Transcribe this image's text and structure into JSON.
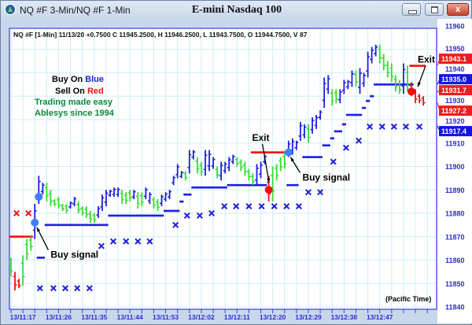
{
  "window": {
    "title": "NQ #F 3-Min/NQ #F 1-Min",
    "chart_title": "E-mini Nasdaq 100",
    "close_label": "x"
  },
  "info_line": "NQ #F [1-Min] 11/13/20  +0.7500 C 11945.2500, H 11946.2500, L 11943.7500, O 11944.7500, V 87",
  "legend": {
    "buy_prefix": "Buy On ",
    "buy_word": "Blue",
    "sell_prefix": "Sell On ",
    "sell_word": "Red",
    "line3": "Trading made easy",
    "line4": "Ablesys since 1994"
  },
  "timezone_label": "(Pacific Time)",
  "colors": {
    "blue": "#1e1ee0",
    "green": "#33dd33",
    "red": "#ee1111",
    "signal_blue": "#3f7fff",
    "tag_blue": "#1515e0",
    "tag_red": "#ee1c1c",
    "grid": "#cdeff5",
    "frame": "#3c3cf0",
    "legend_green": "#0a8a3a"
  },
  "chart_data": {
    "type": "ohlc-bar",
    "y_axis": {
      "min": 11840,
      "max": 11960,
      "ticks": [
        11960,
        11950,
        11940,
        11930,
        11920,
        11910,
        11900,
        11890,
        11880,
        11870,
        11860,
        11850,
        11840
      ]
    },
    "x_axis": {
      "tick_every_bars": 3,
      "labels": [
        {
          "bar": 3,
          "text": "13/11:17"
        },
        {
          "bar": 12,
          "text": "13/11:26"
        },
        {
          "bar": 21,
          "text": "13/11:35"
        },
        {
          "bar": 30,
          "text": "13/11:44"
        },
        {
          "bar": 39,
          "text": "13/11:53"
        },
        {
          "bar": 48,
          "text": "13/12:02"
        },
        {
          "bar": 57,
          "text": "13/12:11"
        },
        {
          "bar": 66,
          "text": "13/12:20"
        },
        {
          "bar": 75,
          "text": "13/12:29"
        },
        {
          "bar": 84,
          "text": "13/12:38"
        },
        {
          "bar": 93,
          "text": "13/12:47"
        }
      ]
    },
    "bars_hi_lo_color": [
      [
        11861,
        11853,
        "g"
      ],
      [
        11855,
        11847,
        "r"
      ],
      [
        11852,
        11848,
        "r"
      ],
      [
        11862,
        11849,
        "g"
      ],
      [
        11869,
        11860,
        "g"
      ],
      [
        11870,
        11864,
        "g"
      ],
      [
        11884,
        11869,
        "b"
      ],
      [
        11896,
        11884,
        "b"
      ],
      [
        11893,
        11888,
        "b"
      ],
      [
        11893,
        11885,
        "g"
      ],
      [
        11890,
        11883,
        "g"
      ],
      [
        11886,
        11883,
        "g"
      ],
      [
        11887,
        11882,
        "g"
      ],
      [
        11884,
        11881,
        "g"
      ],
      [
        11884,
        11880,
        "g"
      ],
      [
        11885,
        11882,
        "b"
      ],
      [
        11887,
        11883,
        "b"
      ],
      [
        11885,
        11880,
        "g"
      ],
      [
        11883,
        11879,
        "g"
      ],
      [
        11883,
        11878,
        "g"
      ],
      [
        11881,
        11876,
        "g"
      ],
      [
        11880,
        11876,
        "g"
      ],
      [
        11883,
        11878,
        "b"
      ],
      [
        11888,
        11881,
        "b"
      ],
      [
        11890,
        11883,
        "b"
      ],
      [
        11890,
        11887,
        "b"
      ],
      [
        11891,
        11887,
        "b"
      ],
      [
        11891,
        11887,
        "b"
      ],
      [
        11890,
        11884,
        "g"
      ],
      [
        11889,
        11884,
        "g"
      ],
      [
        11890,
        11885,
        "g"
      ],
      [
        11890,
        11886,
        "b"
      ],
      [
        11889,
        11882,
        "g"
      ],
      [
        11889,
        11883,
        "g"
      ],
      [
        11891,
        11886,
        "b"
      ],
      [
        11889,
        11884,
        "b"
      ],
      [
        11887,
        11882,
        "g"
      ],
      [
        11886,
        11881,
        "g"
      ],
      [
        11888,
        11883,
        "b"
      ],
      [
        11889,
        11885,
        "b"
      ],
      [
        11890,
        11886,
        "b"
      ],
      [
        11896,
        11892,
        "b"
      ],
      [
        11901,
        11895,
        "b"
      ],
      [
        11898,
        11895,
        "b"
      ],
      [
        11898,
        11894,
        "g"
      ],
      [
        11907,
        11897,
        "b"
      ],
      [
        11907,
        11903,
        "b"
      ],
      [
        11904,
        11897,
        "g"
      ],
      [
        11902,
        11896,
        "g"
      ],
      [
        11907,
        11896,
        "b"
      ],
      [
        11907,
        11898,
        "b"
      ],
      [
        11904,
        11899,
        "b"
      ],
      [
        11900,
        11895,
        "g"
      ],
      [
        11902,
        11894,
        "b"
      ],
      [
        11902,
        11897,
        "b"
      ],
      [
        11904,
        11898,
        "b"
      ],
      [
        11905,
        11901,
        "b"
      ],
      [
        11904,
        11900,
        "g"
      ],
      [
        11903,
        11898,
        "g"
      ],
      [
        11902,
        11896,
        "g"
      ],
      [
        11899,
        11894,
        "g"
      ],
      [
        11897,
        11892,
        "g"
      ],
      [
        11901,
        11892,
        "b"
      ],
      [
        11902,
        11895,
        "b"
      ],
      [
        11905,
        11901,
        "b"
      ],
      [
        11896,
        11885,
        "r"
      ],
      [
        11900,
        11885,
        "g"
      ],
      [
        11901,
        11894,
        "g"
      ],
      [
        11904,
        11898,
        "g"
      ],
      [
        11906,
        11899,
        "g"
      ],
      [
        11911,
        11904,
        "b"
      ],
      [
        11912,
        11905,
        "b"
      ],
      [
        11911,
        11907,
        "b"
      ],
      [
        11919,
        11911,
        "b"
      ],
      [
        11918,
        11912,
        "b"
      ],
      [
        11918,
        11910,
        "g"
      ],
      [
        11921,
        11914,
        "b"
      ],
      [
        11922,
        11916,
        "b"
      ],
      [
        11924,
        11920,
        "b"
      ],
      [
        11938,
        11925,
        "b"
      ],
      [
        11939,
        11931,
        "b"
      ],
      [
        11933,
        11926,
        "g"
      ],
      [
        11933,
        11927,
        "g"
      ],
      [
        11933,
        11927,
        "b"
      ],
      [
        11937,
        11931,
        "b"
      ],
      [
        11937,
        11933,
        "b"
      ],
      [
        11941,
        11934,
        "b"
      ],
      [
        11941,
        11934,
        "g"
      ],
      [
        11942,
        11931,
        "b"
      ],
      [
        11940,
        11934,
        "b"
      ],
      [
        11949,
        11938,
        "b"
      ],
      [
        11951,
        11944,
        "b"
      ],
      [
        11952,
        11947,
        "b"
      ],
      [
        11952,
        11944,
        "g"
      ],
      [
        11948,
        11941,
        "g"
      ],
      [
        11945,
        11938,
        "g"
      ],
      [
        11944,
        11936,
        "g"
      ],
      [
        11939,
        11932,
        "g"
      ],
      [
        11937,
        11931,
        "g"
      ],
      [
        11944,
        11931,
        "b"
      ],
      [
        11943,
        11932,
        "g"
      ],
      [
        11936,
        11930,
        "r"
      ],
      [
        11933,
        11927,
        "r"
      ],
      [
        11931,
        11927,
        "r"
      ],
      [
        11930,
        11926,
        "r"
      ]
    ],
    "stop_dots": [
      {
        "from": 0,
        "to": 5,
        "price": 11870,
        "color": "r"
      },
      {
        "from": 61,
        "to": 70,
        "price": 11906,
        "color": "r"
      },
      {
        "from": 101,
        "to": 104,
        "price": 11943,
        "color": "r"
      },
      {
        "from": 7,
        "to": 8,
        "price": 11861,
        "color": "b"
      },
      {
        "from": 9,
        "to": 24,
        "price": 11875,
        "color": "b"
      },
      {
        "from": 25,
        "to": 38,
        "price": 11879,
        "color": "b"
      },
      {
        "from": 39,
        "to": 42,
        "price": 11881,
        "color": "b"
      },
      {
        "from": 43,
        "to": 43,
        "price": 11885,
        "color": "b"
      },
      {
        "from": 44,
        "to": 45,
        "price": 11888,
        "color": "b"
      },
      {
        "from": 46,
        "to": 54,
        "price": 11891,
        "color": "b"
      },
      {
        "from": 55,
        "to": 64,
        "price": 11892,
        "color": "b"
      },
      {
        "from": 70,
        "to": 72,
        "price": 11892,
        "color": "b"
      },
      {
        "from": 74,
        "to": 78,
        "price": 11904,
        "color": "b"
      },
      {
        "from": 79,
        "to": 80,
        "price": 11909,
        "color": "b"
      },
      {
        "from": 81,
        "to": 81,
        "price": 11912,
        "color": "b"
      },
      {
        "from": 82,
        "to": 83,
        "price": 11915,
        "color": "b"
      },
      {
        "from": 84,
        "to": 84,
        "price": 11918,
        "color": "b"
      },
      {
        "from": 85,
        "to": 88,
        "price": 11922,
        "color": "b"
      },
      {
        "from": 89,
        "to": 89,
        "price": 11925,
        "color": "b"
      },
      {
        "from": 90,
        "to": 90,
        "price": 11928,
        "color": "b"
      },
      {
        "from": 91,
        "to": 91,
        "price": 11930,
        "color": "b"
      },
      {
        "from": 92,
        "to": 101,
        "price": 11935,
        "color": "b"
      }
    ],
    "x_markers": [
      [
        1.4,
        11880,
        "r"
      ],
      [
        4.4,
        11880,
        "r"
      ],
      [
        7.3,
        11848,
        "b"
      ],
      [
        10.7,
        11848,
        "b"
      ],
      [
        13.7,
        11848,
        "b"
      ],
      [
        16.7,
        11848,
        "b"
      ],
      [
        19.8,
        11848,
        "b"
      ],
      [
        22.8,
        11866,
        "b"
      ],
      [
        25.8,
        11868,
        "b"
      ],
      [
        29,
        11868,
        "b"
      ],
      [
        32,
        11868,
        "b"
      ],
      [
        35,
        11868,
        "b"
      ],
      [
        41.5,
        11875,
        "b"
      ],
      [
        44.4,
        11879,
        "b"
      ],
      [
        47.6,
        11879,
        "b"
      ],
      [
        50.6,
        11880,
        "b"
      ],
      [
        53.8,
        11883,
        "b"
      ],
      [
        56.8,
        11883,
        "b"
      ],
      [
        60,
        11883,
        "b"
      ],
      [
        63.2,
        11883,
        "b"
      ],
      [
        66.4,
        11883,
        "b"
      ],
      [
        69.5,
        11883,
        "b"
      ],
      [
        72.6,
        11883,
        "b"
      ],
      [
        75,
        11889,
        "b"
      ],
      [
        78,
        11889,
        "b"
      ],
      [
        81.3,
        11902,
        "b"
      ],
      [
        84.5,
        11908,
        "b"
      ],
      [
        87.7,
        11911,
        "b"
      ],
      [
        90.5,
        11917,
        "b"
      ],
      [
        93.6,
        11917,
        "b"
      ],
      [
        96.6,
        11917,
        "b"
      ],
      [
        99.6,
        11917,
        "b"
      ],
      [
        103,
        11917,
        "b"
      ]
    ],
    "signal_dots": [
      {
        "bar": 6,
        "price": 11876,
        "color": "b"
      },
      {
        "bar": 7,
        "price": 11887,
        "color": "b"
      },
      {
        "bar": 65,
        "price": 11890,
        "color": "r"
      },
      {
        "bar": 70,
        "price": 11906,
        "color": "b"
      },
      {
        "bar": 101,
        "price": 11932,
        "color": "r"
      }
    ],
    "annotations": [
      {
        "text": "Buy signal",
        "bar": 10,
        "price": 11861,
        "arrow_to_bar": 6.5,
        "arrow_to_price": 11874
      },
      {
        "text": "Exit",
        "bar": 63,
        "price": 11911,
        "arrow_to_bar": 65.1,
        "arrow_to_price": 11893
      },
      {
        "text": "Buy signal",
        "bar": 73.5,
        "price": 11894,
        "arrow_to_bar": 70.5,
        "arrow_to_price": 11904
      },
      {
        "text": "Exit",
        "bar": 104.6,
        "price": 11943,
        "arrow_to_bar": 102.6,
        "arrow_to_price": 11934
      }
    ],
    "price_tags": [
      {
        "text": "11943.1",
        "price": 11943.1,
        "color": "r"
      },
      {
        "text": "11935.0",
        "price": 11935.0,
        "color": "b"
      },
      {
        "text": "11931.7",
        "price": 11931.7,
        "color": "r"
      },
      {
        "text": "11927.2",
        "price": 11927.2,
        "color": "r"
      },
      {
        "text": "11917.4",
        "price": 11917.4,
        "color": "b"
      }
    ]
  }
}
